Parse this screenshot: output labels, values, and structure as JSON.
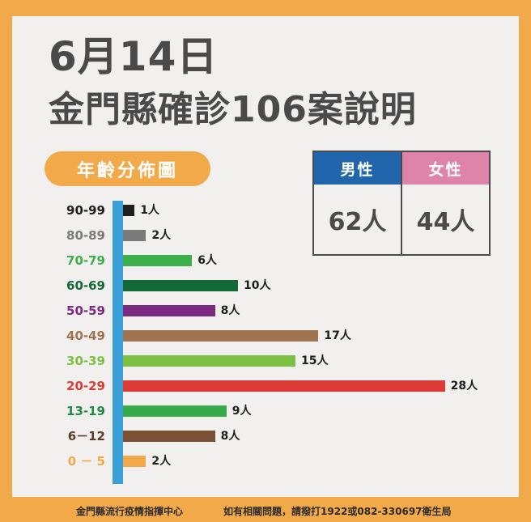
{
  "header": {
    "date": "6月14日",
    "title": "金門縣確診106案說明"
  },
  "section_label": "年齡分佈圖",
  "gender": {
    "male": {
      "label": "男性",
      "value": "62人",
      "color": "#2166ac"
    },
    "female": {
      "label": "女性",
      "value": "44人",
      "color": "#de84a9"
    }
  },
  "footer": {
    "left": "金門縣流行疫情指揮中心",
    "right": "如有相關問題，請撥打1922或082-330697衛生局"
  },
  "colors": {
    "border": "#f2a94a",
    "panel": "#f1f0ef",
    "axis": "#3a9fd6",
    "text": "#4a4a4a"
  },
  "rows": [
    {
      "label": "90-99",
      "value": 1,
      "value_label": "1人",
      "color": "#1e1e1e",
      "label_color": "#1e1e1e"
    },
    {
      "label": "80-89",
      "value": 2,
      "value_label": "2人",
      "color": "#7a7a7a",
      "label_color": "#7a7a7a"
    },
    {
      "label": "70-79",
      "value": 6,
      "value_label": "6人",
      "color": "#3cae4a",
      "label_color": "#3cae4a"
    },
    {
      "label": "60-69",
      "value": 10,
      "value_label": "10人",
      "color": "#116a38",
      "label_color": "#116a38"
    },
    {
      "label": "50-59",
      "value": 8,
      "value_label": "8人",
      "color": "#7b2a80",
      "label_color": "#7b2a80"
    },
    {
      "label": "40-49",
      "value": 17,
      "value_label": "17人",
      "color": "#a07450",
      "label_color": "#a07450"
    },
    {
      "label": "30-39",
      "value": 15,
      "value_label": "15人",
      "color": "#7cc143",
      "label_color": "#7cc143"
    },
    {
      "label": "20-29",
      "value": 28,
      "value_label": "28人",
      "color": "#dd3b36",
      "label_color": "#dd3b36"
    },
    {
      "label": "13-19",
      "value": 9,
      "value_label": "9人",
      "color": "#35ac49",
      "label_color": "#1e8a46"
    },
    {
      "label": "6－12",
      "value": 8,
      "value_label": "8人",
      "color": "#7b5136",
      "label_color": "#5a3e2b"
    },
    {
      "label": "0 － 5",
      "value": 2,
      "value_label": "2人",
      "color": "#f2a94a",
      "label_color": "#f2a94a"
    }
  ],
  "chart_data": {
    "type": "bar",
    "orientation": "horizontal",
    "title": "年齡分佈圖",
    "categories": [
      "90-99",
      "80-89",
      "70-79",
      "60-69",
      "50-59",
      "40-49",
      "30-39",
      "20-29",
      "13-19",
      "6-12",
      "0-5"
    ],
    "values": [
      1,
      2,
      6,
      10,
      8,
      17,
      15,
      28,
      9,
      8,
      2
    ],
    "data_labels": [
      "1人",
      "2人",
      "6人",
      "10人",
      "8人",
      "17人",
      "15人",
      "28人",
      "9人",
      "8人",
      "2人"
    ],
    "xlabel": "",
    "ylabel": "",
    "unit": "人",
    "total": 106,
    "grid": false,
    "legend": null,
    "summary": {
      "male": 62,
      "female": 44
    }
  }
}
